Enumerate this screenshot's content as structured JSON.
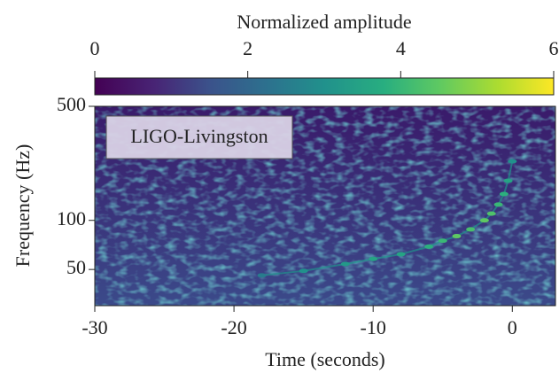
{
  "chart_data": {
    "type": "spectrogram",
    "colorbar_label": "Normalized amplitude",
    "colormap": "viridis",
    "clim": [
      0,
      6
    ],
    "cticks": [
      0,
      2,
      4,
      6
    ],
    "annotation": "LIGO-Livingston",
    "xlabel": "Time (seconds)",
    "ylabel": "Frequency (Hz)",
    "xlim": [
      -30,
      3.1
    ],
    "xticks": [
      -30,
      -20,
      -10,
      0
    ],
    "ylim": [
      30,
      500
    ],
    "yticks": [
      50,
      100,
      500
    ],
    "yscale": "log",
    "x": [
      -18,
      -15,
      -12,
      -10,
      -8,
      -6,
      -5,
      -4,
      -3,
      -2,
      -1.5,
      -1,
      -0.6,
      -0.3,
      0
    ],
    "values": [
      46,
      49,
      54,
      58,
      62,
      69,
      75,
      80,
      88,
      100,
      110,
      125,
      145,
      175,
      230
    ],
    "amplitude": [
      2.5,
      3,
      3.2,
      3.5,
      3.5,
      3.8,
      4,
      4.5,
      4.2,
      4.5,
      4.3,
      4,
      3.8,
      3.5,
      3
    ]
  }
}
